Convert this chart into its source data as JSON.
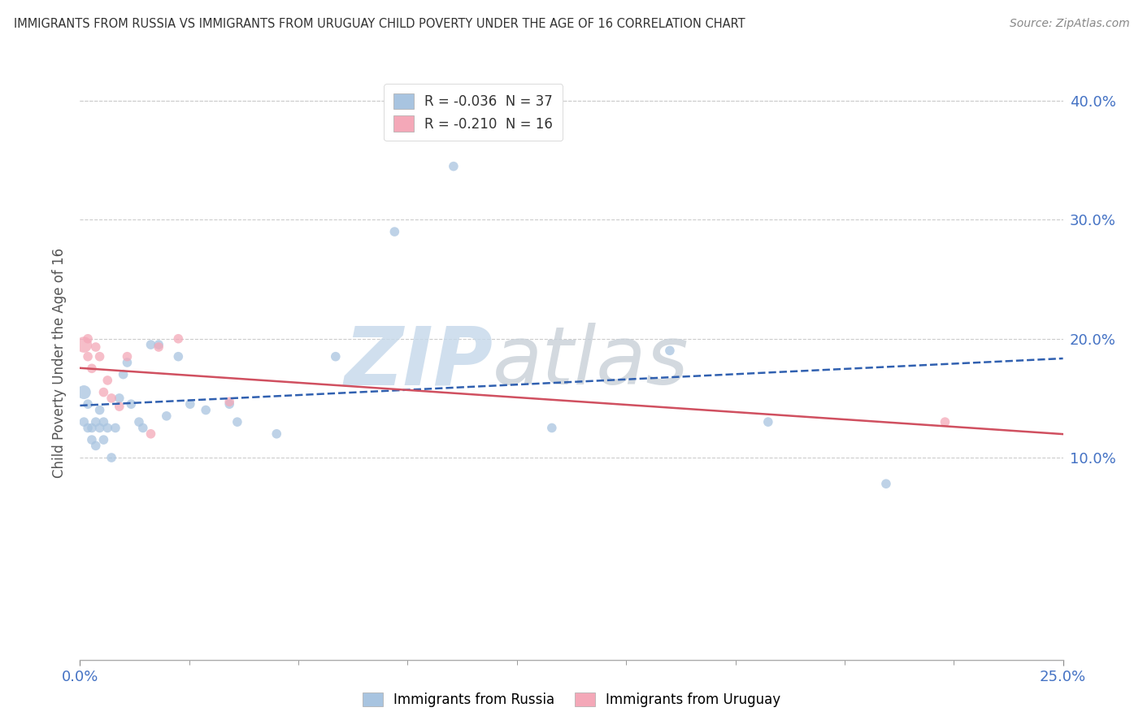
{
  "title": "IMMIGRANTS FROM RUSSIA VS IMMIGRANTS FROM URUGUAY CHILD POVERTY UNDER THE AGE OF 16 CORRELATION CHART",
  "source": "Source: ZipAtlas.com",
  "ylabel": "Child Poverty Under the Age of 16",
  "xlim": [
    0,
    0.25
  ],
  "ylim": [
    -0.07,
    0.43
  ],
  "russia_R": -0.036,
  "russia_N": 37,
  "uruguay_R": -0.21,
  "uruguay_N": 16,
  "russia_color": "#a8c4e0",
  "uruguay_color": "#f4a8b8",
  "russia_line_color": "#3060b0",
  "uruguay_line_color": "#d05060",
  "russia_R_color": "#c03050",
  "uruguay_R_color": "#c03050",
  "watermark_zip": "#c5d8ea",
  "watermark_atlas": "#c8d0d8",
  "background_color": "#ffffff",
  "russia_x": [
    0.001,
    0.001,
    0.002,
    0.002,
    0.003,
    0.003,
    0.004,
    0.004,
    0.005,
    0.005,
    0.006,
    0.006,
    0.007,
    0.008,
    0.009,
    0.01,
    0.011,
    0.012,
    0.013,
    0.015,
    0.016,
    0.018,
    0.02,
    0.022,
    0.025,
    0.028,
    0.032,
    0.038,
    0.04,
    0.05,
    0.065,
    0.08,
    0.095,
    0.12,
    0.15,
    0.175,
    0.205
  ],
  "russia_y": [
    0.155,
    0.13,
    0.125,
    0.145,
    0.125,
    0.115,
    0.13,
    0.11,
    0.125,
    0.14,
    0.13,
    0.115,
    0.125,
    0.1,
    0.125,
    0.15,
    0.17,
    0.18,
    0.145,
    0.13,
    0.125,
    0.195,
    0.195,
    0.135,
    0.185,
    0.145,
    0.14,
    0.145,
    0.13,
    0.12,
    0.185,
    0.29,
    0.345,
    0.125,
    0.19,
    0.13,
    0.078
  ],
  "russia_sizes": [
    150,
    70,
    70,
    70,
    70,
    70,
    70,
    70,
    70,
    70,
    70,
    70,
    70,
    70,
    70,
    70,
    70,
    70,
    70,
    70,
    70,
    70,
    70,
    70,
    70,
    70,
    70,
    70,
    70,
    70,
    70,
    70,
    70,
    70,
    70,
    70,
    70
  ],
  "uruguay_x": [
    0.001,
    0.002,
    0.002,
    0.003,
    0.004,
    0.005,
    0.006,
    0.007,
    0.008,
    0.01,
    0.012,
    0.018,
    0.02,
    0.025,
    0.038,
    0.22
  ],
  "uruguay_y": [
    0.195,
    0.2,
    0.185,
    0.175,
    0.193,
    0.185,
    0.155,
    0.165,
    0.15,
    0.143,
    0.185,
    0.12,
    0.193,
    0.2,
    0.147,
    0.13
  ],
  "uruguay_sizes": [
    200,
    70,
    70,
    70,
    70,
    70,
    70,
    70,
    70,
    70,
    70,
    70,
    70,
    70,
    70,
    70
  ],
  "grid_color": "#cccccc",
  "grid_yticks": [
    0.0,
    0.1,
    0.2,
    0.3,
    0.4
  ]
}
